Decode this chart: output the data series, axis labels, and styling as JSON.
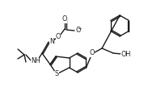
{
  "line_color": "#1a1a1a",
  "line_width": 1.0,
  "font_size": 5.8,
  "figsize": [
    1.94,
    1.08
  ],
  "dpi": 100,
  "xlim": [
    0,
    194
  ],
  "ylim": [
    0,
    108
  ]
}
